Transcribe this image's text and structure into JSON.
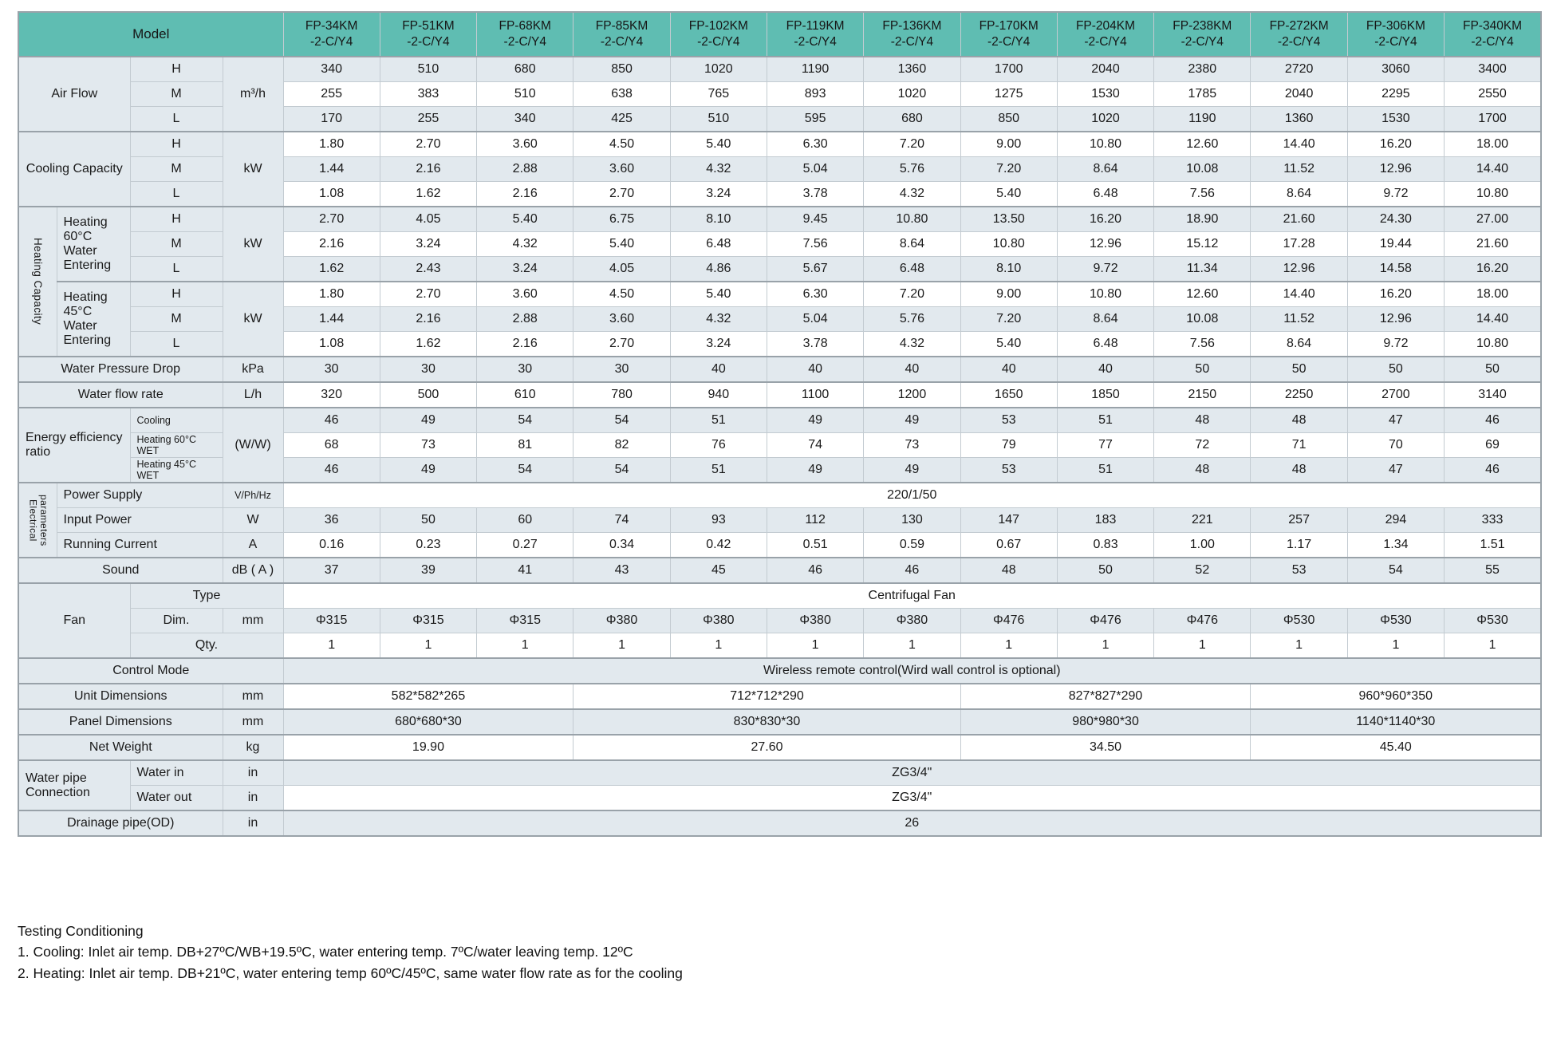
{
  "table": {
    "corner_label": "Model",
    "model_suffix": "-2-C/Y4",
    "models": [
      "FP-34KM",
      "FP-51KM",
      "FP-68KM",
      "FP-85KM",
      "FP-102KM",
      "FP-119KM",
      "FP-136KM",
      "FP-170KM",
      "FP-204KM",
      "FP-238KM",
      "FP-272KM",
      "FP-306KM",
      "FP-340KM"
    ],
    "accent_color": "#5fbdb2",
    "row_shade_color": "#e2e9ee",
    "rows": [
      {
        "n": "air-flow-h",
        "sec": 1,
        "L": [
          {
            "t": "Air Flow",
            "nm": "air-flow-label",
            "cs": 2,
            "rs": 3
          },
          {
            "t": "H"
          },
          {
            "t": "m³/h",
            "nm": "air-flow-unit",
            "rs": 3
          }
        ],
        "v": [
          "340",
          "510",
          "680",
          "850",
          "1020",
          "1190",
          "1360",
          "1700",
          "2040",
          "2380",
          "2720",
          "3060",
          "3400"
        ]
      },
      {
        "n": "air-flow-m",
        "L": [
          {
            "t": "M"
          }
        ],
        "v": [
          "255",
          "383",
          "510",
          "638",
          "765",
          "893",
          "1020",
          "1275",
          "1530",
          "1785",
          "2040",
          "2295",
          "2550"
        ]
      },
      {
        "n": "air-flow-l",
        "L": [
          {
            "t": "L"
          }
        ],
        "v": [
          "170",
          "255",
          "340",
          "425",
          "510",
          "595",
          "680",
          "850",
          "1020",
          "1190",
          "1360",
          "1530",
          "1700"
        ]
      },
      {
        "n": "cooling-capacity-h",
        "sec": 1,
        "L": [
          {
            "t": "Cooling Capacity",
            "nm": "cooling-capacity-label",
            "cs": 2,
            "rs": 3
          },
          {
            "t": "H"
          },
          {
            "t": "kW",
            "nm": "cooling-capacity-unit",
            "rs": 3
          }
        ],
        "v": [
          "1.80",
          "2.70",
          "3.60",
          "4.50",
          "5.40",
          "6.30",
          "7.20",
          "9.00",
          "10.80",
          "12.60",
          "14.40",
          "16.20",
          "18.00"
        ]
      },
      {
        "n": "cooling-capacity-m",
        "L": [
          {
            "t": "M"
          }
        ],
        "v": [
          "1.44",
          "2.16",
          "2.88",
          "3.60",
          "4.32",
          "5.04",
          "5.76",
          "7.20",
          "8.64",
          "10.08",
          "11.52",
          "12.96",
          "14.40"
        ]
      },
      {
        "n": "cooling-capacity-l",
        "L": [
          {
            "t": "L"
          }
        ],
        "v": [
          "1.08",
          "1.62",
          "2.16",
          "2.70",
          "3.24",
          "3.78",
          "4.32",
          "5.40",
          "6.48",
          "7.56",
          "8.64",
          "9.72",
          "10.80"
        ]
      },
      {
        "n": "heating60-h",
        "sec": 1,
        "L": [
          {
            "t": "Heating Capacity",
            "nm": "heating-capacity-label",
            "rs": 6,
            "c": "vt"
          },
          {
            "t": "Heating 60°C Water Entering",
            "nm": "heating60-label",
            "rs": 3,
            "c": "lt"
          },
          {
            "t": "H"
          },
          {
            "t": "kW",
            "nm": "heating60-unit",
            "rs": 3
          }
        ],
        "v": [
          "2.70",
          "4.05",
          "5.40",
          "6.75",
          "8.10",
          "9.45",
          "10.80",
          "13.50",
          "16.20",
          "18.90",
          "21.60",
          "24.30",
          "27.00"
        ]
      },
      {
        "n": "heating60-m",
        "L": [
          {
            "t": "M"
          }
        ],
        "v": [
          "2.16",
          "3.24",
          "4.32",
          "5.40",
          "6.48",
          "7.56",
          "8.64",
          "10.80",
          "12.96",
          "15.12",
          "17.28",
          "19.44",
          "21.60"
        ]
      },
      {
        "n": "heating60-l",
        "L": [
          {
            "t": "L"
          }
        ],
        "v": [
          "1.62",
          "2.43",
          "3.24",
          "4.05",
          "4.86",
          "5.67",
          "6.48",
          "8.10",
          "9.72",
          "11.34",
          "12.96",
          "14.58",
          "16.20"
        ]
      },
      {
        "n": "heating45-h",
        "sec": 1,
        "L": [
          {
            "t": "Heating 45°C Water Entering",
            "nm": "heating45-label",
            "rs": 3,
            "c": "lt"
          },
          {
            "t": "H"
          },
          {
            "t": "kW",
            "nm": "heating45-unit",
            "rs": 3
          }
        ],
        "v": [
          "1.80",
          "2.70",
          "3.60",
          "4.50",
          "5.40",
          "6.30",
          "7.20",
          "9.00",
          "10.80",
          "12.60",
          "14.40",
          "16.20",
          "18.00"
        ]
      },
      {
        "n": "heating45-m",
        "L": [
          {
            "t": "M"
          }
        ],
        "v": [
          "1.44",
          "2.16",
          "2.88",
          "3.60",
          "4.32",
          "5.04",
          "5.76",
          "7.20",
          "8.64",
          "10.08",
          "11.52",
          "12.96",
          "14.40"
        ]
      },
      {
        "n": "heating45-l",
        "L": [
          {
            "t": "L"
          }
        ],
        "v": [
          "1.08",
          "1.62",
          "2.16",
          "2.70",
          "3.24",
          "3.78",
          "4.32",
          "5.40",
          "6.48",
          "7.56",
          "8.64",
          "9.72",
          "10.80"
        ]
      },
      {
        "n": "water-pressure-drop",
        "sec": 1,
        "L": [
          {
            "t": "Water Pressure Drop",
            "nm": "water-pressure-drop-label",
            "cs": 3
          },
          {
            "t": "kPa",
            "nm": "water-pressure-drop-unit"
          }
        ],
        "v": [
          "30",
          "30",
          "30",
          "30",
          "40",
          "40",
          "40",
          "40",
          "40",
          "50",
          "50",
          "50",
          "50"
        ]
      },
      {
        "n": "water-flow-rate",
        "sec": 1,
        "L": [
          {
            "t": "Water flow rate",
            "nm": "water-flow-rate-label",
            "cs": 3
          },
          {
            "t": "L/h",
            "nm": "water-flow-rate-unit"
          }
        ],
        "v": [
          "320",
          "500",
          "610",
          "780",
          "940",
          "1100",
          "1200",
          "1650",
          "1850",
          "2150",
          "2250",
          "2700",
          "3140"
        ]
      },
      {
        "n": "eer-cooling",
        "sec": 1,
        "L": [
          {
            "t": "Energy efficiency ratio",
            "nm": "eer-label",
            "cs": 2,
            "rs": 3,
            "c": "lt"
          },
          {
            "t": "Cooling",
            "c": "sm lt"
          },
          {
            "t": "(W/W)",
            "nm": "eer-unit",
            "rs": 3
          }
        ],
        "v": [
          "46",
          "49",
          "54",
          "54",
          "51",
          "49",
          "49",
          "53",
          "51",
          "48",
          "48",
          "47",
          "46"
        ]
      },
      {
        "n": "eer-heating60wet",
        "L": [
          {
            "t": "Heating 60°C WET",
            "c": "sm lt"
          }
        ],
        "v": [
          "68",
          "73",
          "81",
          "82",
          "76",
          "74",
          "73",
          "79",
          "77",
          "72",
          "71",
          "70",
          "69"
        ]
      },
      {
        "n": "eer-heating45wet",
        "L": [
          {
            "t": "Heating 45°C WET",
            "c": "sm lt"
          }
        ],
        "v": [
          "46",
          "49",
          "54",
          "54",
          "51",
          "49",
          "49",
          "53",
          "51",
          "48",
          "48",
          "47",
          "46"
        ]
      },
      {
        "n": "power-supply",
        "sec": 1,
        "L": [
          {
            "t": "Electrical parameters",
            "nm": "electrical-parameters-label",
            "rs": 3,
            "c": "vt sm"
          },
          {
            "t": "Power Supply",
            "cs": 2,
            "c": "lt"
          },
          {
            "t": "V/Ph/Hz",
            "nm": "power-supply-unit",
            "c": "sm"
          }
        ],
        "m": [
          {
            "t": "220/1/50",
            "s": 13
          }
        ]
      },
      {
        "n": "input-power",
        "L": [
          {
            "t": "Input Power",
            "cs": 2,
            "c": "lt"
          },
          {
            "t": "W",
            "nm": "input-power-unit"
          }
        ],
        "v": [
          "36",
          "50",
          "60",
          "74",
          "93",
          "112",
          "130",
          "147",
          "183",
          "221",
          "257",
          "294",
          "333"
        ]
      },
      {
        "n": "running-current",
        "L": [
          {
            "t": "Running Current",
            "cs": 2,
            "c": "lt"
          },
          {
            "t": "A",
            "nm": "running-current-unit"
          }
        ],
        "v": [
          "0.16",
          "0.23",
          "0.27",
          "0.34",
          "0.42",
          "0.51",
          "0.59",
          "0.67",
          "0.83",
          "1.00",
          "1.17",
          "1.34",
          "1.51"
        ]
      },
      {
        "n": "sound",
        "sec": 1,
        "L": [
          {
            "t": "Sound",
            "nm": "sound-label",
            "cs": 3
          },
          {
            "t": "dB ( A )",
            "nm": "sound-unit"
          }
        ],
        "v": [
          "37",
          "39",
          "41",
          "43",
          "45",
          "46",
          "46",
          "48",
          "50",
          "52",
          "53",
          "54",
          "55"
        ]
      },
      {
        "n": "fan-type",
        "sec": 1,
        "L": [
          {
            "t": "Fan",
            "nm": "fan-label",
            "cs": 2,
            "rs": 3
          },
          {
            "t": "Type",
            "cs": 2
          }
        ],
        "m": [
          {
            "t": "Centrifugal Fan",
            "s": 13
          }
        ]
      },
      {
        "n": "fan-dim",
        "L": [
          {
            "t": "Dim."
          },
          {
            "t": "mm",
            "nm": "fan-dim-unit"
          }
        ],
        "v": [
          "Φ315",
          "Φ315",
          "Φ315",
          "Φ380",
          "Φ380",
          "Φ380",
          "Φ380",
          "Φ476",
          "Φ476",
          "Φ476",
          "Φ530",
          "Φ530",
          "Φ530"
        ]
      },
      {
        "n": "fan-qty",
        "L": [
          {
            "t": "Qty.",
            "cs": 2
          }
        ],
        "v": [
          "1",
          "1",
          "1",
          "1",
          "1",
          "1",
          "1",
          "1",
          "1",
          "1",
          "1",
          "1",
          "1"
        ]
      },
      {
        "n": "control-mode",
        "sec": 1,
        "L": [
          {
            "t": "Control Mode",
            "nm": "control-mode-label",
            "cs": 4
          }
        ],
        "m": [
          {
            "t": "Wireless remote control(Wird wall control is optional)",
            "s": 13
          }
        ]
      },
      {
        "n": "unit-dimensions",
        "sec": 1,
        "L": [
          {
            "t": "Unit Dimensions",
            "nm": "unit-dimensions-label",
            "cs": 3
          },
          {
            "t": "mm",
            "nm": "unit-dimensions-unit"
          }
        ],
        "m": [
          {
            "t": "582*582*265",
            "s": 3
          },
          {
            "t": "712*712*290",
            "s": 4
          },
          {
            "t": "827*827*290",
            "s": 3
          },
          {
            "t": "960*960*350",
            "s": 3
          }
        ]
      },
      {
        "n": "panel-dimensions",
        "sec": 1,
        "L": [
          {
            "t": "Panel Dimensions",
            "nm": "panel-dimensions-label",
            "cs": 3
          },
          {
            "t": "mm",
            "nm": "panel-dimensions-unit"
          }
        ],
        "m": [
          {
            "t": "680*680*30",
            "s": 3
          },
          {
            "t": "830*830*30",
            "s": 4
          },
          {
            "t": "980*980*30",
            "s": 3
          },
          {
            "t": "1140*1140*30",
            "s": 3
          }
        ]
      },
      {
        "n": "net-weight",
        "sec": 1,
        "L": [
          {
            "t": "Net Weight",
            "nm": "net-weight-label",
            "cs": 3
          },
          {
            "t": "kg",
            "nm": "net-weight-unit"
          }
        ],
        "m": [
          {
            "t": "19.90",
            "s": 3
          },
          {
            "t": "27.60",
            "s": 4
          },
          {
            "t": "34.50",
            "s": 3
          },
          {
            "t": "45.40",
            "s": 3
          }
        ]
      },
      {
        "n": "water-in",
        "sec": 1,
        "L": [
          {
            "t": "Water pipe Connection",
            "nm": "water-pipe-connection-label",
            "cs": 2,
            "rs": 2,
            "c": "lt"
          },
          {
            "t": "Water in",
            "c": "lt"
          },
          {
            "t": "in",
            "nm": "water-in-unit"
          }
        ],
        "m": [
          {
            "t": "ZG3/4\"",
            "s": 13
          }
        ]
      },
      {
        "n": "water-out",
        "L": [
          {
            "t": "Water out",
            "c": "lt"
          },
          {
            "t": "in",
            "nm": "water-out-unit"
          }
        ],
        "m": [
          {
            "t": "ZG3/4\"",
            "s": 13
          }
        ]
      },
      {
        "n": "drainage-pipe",
        "sec": 1,
        "L": [
          {
            "t": "Drainage pipe(OD)",
            "nm": "drainage-pipe-label",
            "cs": 3
          },
          {
            "t": "in",
            "nm": "drainage-pipe-unit"
          }
        ],
        "m": [
          {
            "t": "26",
            "s": 13
          }
        ]
      }
    ]
  },
  "notes": {
    "title": "Testing Conditioning",
    "cooling": "1. Cooling: Inlet air temp. DB+27ºC/WB+19.5ºC, water entering temp. 7ºC/water leaving temp. 12ºC",
    "heating": "2. Heating: Inlet air temp. DB+21ºC, water entering temp 60ºC/45ºC, same water flow rate as for the cooling"
  }
}
